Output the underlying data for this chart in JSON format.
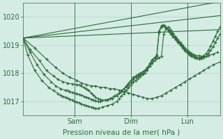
{
  "bg_color": "#d4ece4",
  "grid_color": "#b0d4c4",
  "line_color": "#2d6b3a",
  "marker_color": "#2d6b3a",
  "ylim": [
    1016.5,
    1020.5
  ],
  "xlim": [
    0,
    84
  ],
  "yticks": [
    1017,
    1018,
    1019,
    1020
  ],
  "xticks": [
    22,
    46,
    70
  ],
  "xticklabels": [
    "Sam",
    "Dim",
    "Lun"
  ],
  "xlabel": "Pression niveau de la mer( hPa )",
  "series": [
    {
      "x": [
        0,
        84
      ],
      "y": [
        1019.25,
        1019.55
      ],
      "has_markers": false
    },
    {
      "x": [
        0,
        84
      ],
      "y": [
        1019.25,
        1020.05
      ],
      "has_markers": false
    },
    {
      "x": [
        0,
        84
      ],
      "y": [
        1019.25,
        1020.55
      ],
      "has_markers": false
    },
    {
      "x": [
        0,
        5,
        10,
        14,
        17,
        20,
        23,
        25,
        27,
        29,
        31,
        33,
        35,
        37,
        39,
        41,
        43,
        45,
        47,
        49,
        51,
        53,
        55,
        57,
        59,
        61,
        63,
        65,
        67,
        69,
        71,
        73,
        75,
        77,
        79,
        81,
        84
      ],
      "y": [
        1019.25,
        1018.9,
        1018.5,
        1018.2,
        1018.0,
        1017.85,
        1017.75,
        1017.65,
        1017.6,
        1017.55,
        1017.55,
        1017.5,
        1017.5,
        1017.45,
        1017.45,
        1017.4,
        1017.35,
        1017.3,
        1017.25,
        1017.2,
        1017.15,
        1017.1,
        1017.1,
        1017.15,
        1017.2,
        1017.3,
        1017.4,
        1017.5,
        1017.6,
        1017.7,
        1017.8,
        1017.9,
        1018.0,
        1018.1,
        1018.2,
        1018.3,
        1018.4
      ],
      "has_markers": true
    },
    {
      "x": [
        0,
        3,
        7,
        10,
        13,
        15,
        17,
        19,
        21,
        23,
        24,
        25,
        26,
        27,
        28,
        29,
        30,
        31,
        32,
        33,
        34,
        36,
        38,
        40,
        42,
        44,
        45,
        46,
        47,
        48,
        49,
        50,
        51,
        52,
        53,
        54,
        55,
        56,
        57,
        58,
        59,
        60,
        61,
        62,
        63,
        64,
        65,
        66,
        67,
        68,
        69,
        70,
        71,
        72,
        73,
        75,
        77,
        79,
        81,
        83
      ],
      "y": [
        1019.25,
        1018.85,
        1018.45,
        1018.1,
        1017.9,
        1017.78,
        1017.7,
        1017.65,
        1017.62,
        1017.6,
        1017.58,
        1017.55,
        1017.5,
        1017.45,
        1017.38,
        1017.3,
        1017.22,
        1017.15,
        1017.1,
        1017.06,
        1017.04,
        1017.05,
        1017.1,
        1017.2,
        1017.35,
        1017.55,
        1017.65,
        1017.75,
        1017.85,
        1017.9,
        1017.95,
        1018.0,
        1018.05,
        1018.1,
        1018.18,
        1018.25,
        1018.35,
        1018.45,
        1018.52,
        1018.55,
        1018.6,
        1019.4,
        1019.6,
        1019.65,
        1019.55,
        1019.42,
        1019.3,
        1019.2,
        1019.1,
        1019.0,
        1018.9,
        1018.82,
        1018.75,
        1018.7,
        1018.65,
        1018.62,
        1018.6,
        1018.62,
        1018.68,
        1018.75
      ],
      "has_markers": true
    },
    {
      "x": [
        0,
        3,
        6,
        9,
        12,
        14,
        16,
        18,
        19,
        20,
        21,
        22,
        23,
        24,
        25,
        26,
        27,
        28,
        29,
        30,
        31,
        32,
        33,
        35,
        37,
        39,
        41,
        42,
        43,
        44,
        45,
        46,
        47,
        48,
        49,
        50,
        51,
        52,
        53,
        54,
        55,
        56,
        57,
        58,
        59,
        60,
        61,
        62,
        63,
        64,
        65,
        66,
        67,
        68,
        69,
        70,
        71,
        72,
        73,
        74,
        75,
        76,
        77,
        78,
        79,
        80,
        81,
        82,
        83,
        84
      ],
      "y": [
        1019.25,
        1018.75,
        1018.3,
        1017.95,
        1017.7,
        1017.55,
        1017.45,
        1017.4,
        1017.38,
        1017.35,
        1017.32,
        1017.3,
        1017.28,
        1017.25,
        1017.22,
        1017.18,
        1017.15,
        1017.12,
        1017.08,
        1017.05,
        1017.02,
        1017.0,
        1017.0,
        1017.05,
        1017.1,
        1017.2,
        1017.3,
        1017.38,
        1017.45,
        1017.52,
        1017.6,
        1017.68,
        1017.78,
        1017.85,
        1017.9,
        1017.95,
        1018.0,
        1018.1,
        1018.2,
        1018.35,
        1018.48,
        1018.55,
        1018.6,
        1019.45,
        1019.65,
        1019.68,
        1019.6,
        1019.5,
        1019.4,
        1019.3,
        1019.2,
        1019.1,
        1019.0,
        1018.9,
        1018.8,
        1018.72,
        1018.65,
        1018.6,
        1018.56,
        1018.52,
        1018.5,
        1018.52,
        1018.55,
        1018.6,
        1018.7,
        1018.82,
        1018.95,
        1019.1,
        1019.25,
        1019.4
      ],
      "has_markers": true
    },
    {
      "x": [
        0,
        2,
        5,
        8,
        11,
        13,
        15,
        16,
        17,
        18,
        19,
        20,
        21,
        22,
        23,
        24,
        25,
        26,
        27,
        28,
        29,
        30,
        31,
        32,
        34,
        36,
        38,
        40,
        41,
        42,
        43,
        44,
        45,
        46,
        47,
        48,
        49,
        50,
        51,
        52,
        53,
        54,
        55,
        56,
        57,
        58,
        59,
        60,
        61,
        62,
        63,
        64,
        65,
        66,
        67,
        68,
        69,
        70,
        71,
        72,
        73,
        74,
        75,
        76,
        77,
        78,
        79,
        80,
        81,
        82,
        83,
        84
      ],
      "y": [
        1019.25,
        1018.65,
        1018.1,
        1017.75,
        1017.5,
        1017.38,
        1017.28,
        1017.22,
        1017.18,
        1017.15,
        1017.12,
        1017.08,
        1017.05,
        1017.0,
        1016.98,
        1016.95,
        1016.9,
        1016.88,
        1016.85,
        1016.82,
        1016.8,
        1016.78,
        1016.75,
        1016.75,
        1016.8,
        1016.85,
        1016.9,
        1017.0,
        1017.1,
        1017.2,
        1017.28,
        1017.38,
        1017.48,
        1017.58,
        1017.68,
        1017.75,
        1017.82,
        1017.88,
        1017.95,
        1018.02,
        1018.12,
        1018.25,
        1018.4,
        1018.55,
        1018.65,
        1019.5,
        1019.7,
        1019.72,
        1019.65,
        1019.55,
        1019.45,
        1019.35,
        1019.25,
        1019.15,
        1019.05,
        1018.95,
        1018.85,
        1018.75,
        1018.7,
        1018.65,
        1018.6,
        1018.58,
        1018.55,
        1018.58,
        1018.62,
        1018.7,
        1018.82,
        1018.98,
        1019.15,
        1019.32,
        1019.5,
        1019.65
      ],
      "has_markers": true
    }
  ]
}
